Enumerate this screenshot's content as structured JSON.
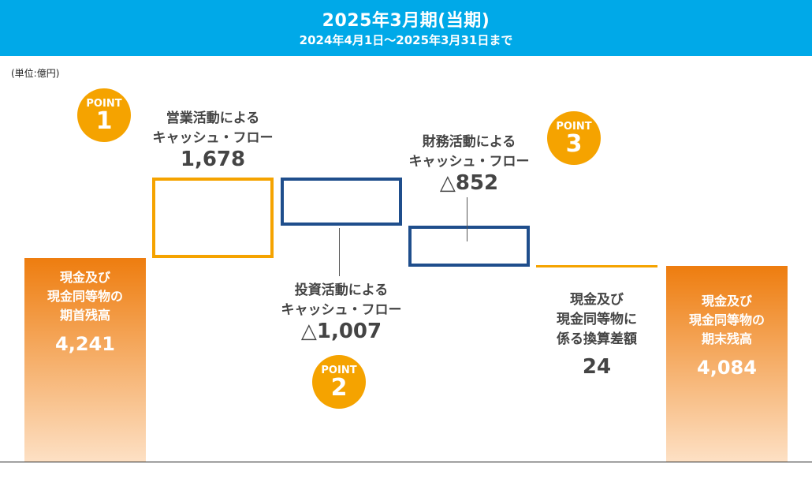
{
  "header": {
    "title": "2025年3月期(当期)",
    "subtitle": "2024年4月1日～2025年3月31日まで"
  },
  "unit_label": "(単位:億円)",
  "point_word": "POINT",
  "colors": {
    "header_bg": "#00a9e8",
    "total_bar_top": "#ee7d0f",
    "total_bar_bottom": "#fde0c4",
    "operating": "#f5a300",
    "investing": "#1f4e8c",
    "financing": "#1f4e8c",
    "fx": "#f5a300",
    "point_badge": "#f5a300"
  },
  "chart_data": {
    "type": "waterfall",
    "ylim": [
      0,
      6100
    ],
    "grid": false,
    "items": [
      {
        "label": "現金及び\n現金同等物の\n期首残高",
        "value": 4241,
        "display": "4,241",
        "kind": "total"
      },
      {
        "label": "営業活動による\nキャッシュ・フロー",
        "value": 1678,
        "display": "1,678",
        "kind": "delta",
        "point": "1"
      },
      {
        "label": "投資活動による\nキャッシュ・フロー",
        "value": -1007,
        "display": "△1,007",
        "kind": "delta",
        "point": "2"
      },
      {
        "label": "財務活動による\nキャッシュ・フロー",
        "value": -852,
        "display": "△852",
        "kind": "delta",
        "point": "3"
      },
      {
        "label": "現金及び\n現金同等物に\n係る換算差額",
        "value": 24,
        "display": "24",
        "kind": "delta"
      },
      {
        "label": "現金及び\n現金同等物の\n期末残高",
        "value": 4084,
        "display": "4,084",
        "kind": "total"
      }
    ]
  }
}
